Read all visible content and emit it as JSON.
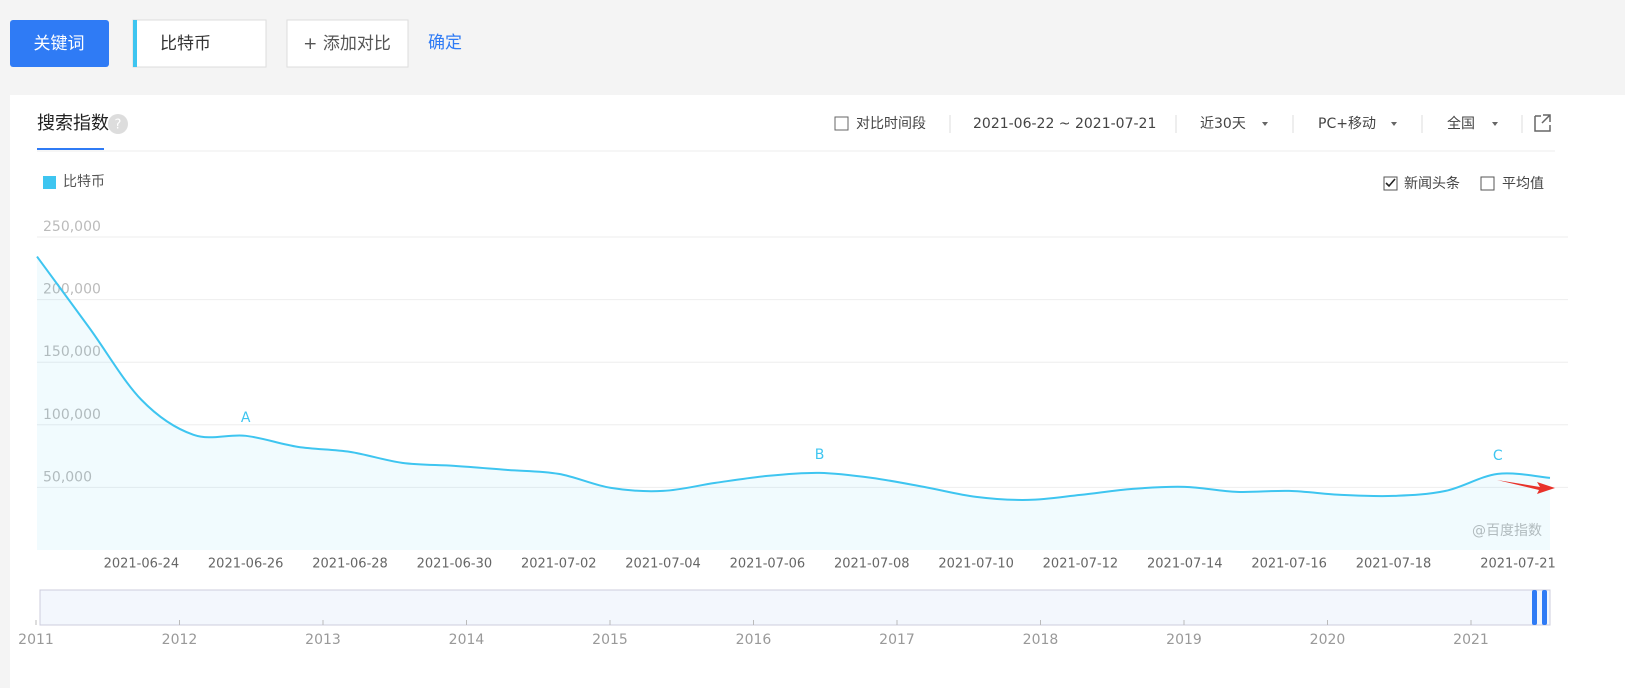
{
  "toolbar": {
    "keyword_button": "关键词",
    "keyword": "比特币",
    "add_compare": "+ 添加对比",
    "confirm": "确定"
  },
  "panel": {
    "tab": "搜索指数",
    "help": "?",
    "compare_period": "对比时间段",
    "date_range": "2021-06-22 ~ 2021-07-21",
    "period": "近30天",
    "device": "PC+移动",
    "region": "全国",
    "news_headlines": "新闻头条",
    "news_checked": true,
    "average": "平均值",
    "average_checked": false,
    "watermark": "@百度指数"
  },
  "chart_data": {
    "type": "line",
    "categories": [
      "2021-06-22",
      "2021-06-23",
      "2021-06-24",
      "2021-06-25",
      "2021-06-26",
      "2021-06-27",
      "2021-06-28",
      "2021-06-29",
      "2021-06-30",
      "2021-07-01",
      "2021-07-02",
      "2021-07-03",
      "2021-07-04",
      "2021-07-05",
      "2021-07-06",
      "2021-07-07",
      "2021-07-08",
      "2021-07-09",
      "2021-07-10",
      "2021-07-11",
      "2021-07-12",
      "2021-07-13",
      "2021-07-14",
      "2021-07-15",
      "2021-07-16",
      "2021-07-17",
      "2021-07-18",
      "2021-07-19",
      "2021-07-20",
      "2021-07-21"
    ],
    "xticks": [
      "2021-06-24",
      "2021-06-26",
      "2021-06-28",
      "2021-06-30",
      "2021-07-02",
      "2021-07-04",
      "2021-07-06",
      "2021-07-08",
      "2021-07-10",
      "2021-07-12",
      "2021-07-14",
      "2021-07-16",
      "2021-07-18",
      "2021-07-21"
    ],
    "series": [
      {
        "name": "比特币",
        "color": "#3ec5f0",
        "values": [
          234400,
          177600,
          120000,
          92000,
          91200,
          82400,
          78400,
          69600,
          67200,
          64000,
          60800,
          49600,
          47200,
          53600,
          59200,
          61600,
          57600,
          50400,
          42400,
          40000,
          44000,
          48800,
          50400,
          46400,
          47200,
          44000,
          43200,
          47200,
          60800,
          57600
        ]
      }
    ],
    "ylim": [
      0,
      250000
    ],
    "yticks": [
      {
        "value": 50000,
        "label": "50,000"
      },
      {
        "value": 100000,
        "label": "100,000"
      },
      {
        "value": 150000,
        "label": "150,000"
      },
      {
        "value": 200000,
        "label": "200,000"
      },
      {
        "value": 250000,
        "label": "250,000"
      }
    ],
    "grid": true,
    "annotations": [
      {
        "text": "A",
        "x": "2021-06-26"
      },
      {
        "text": "B",
        "x": "2021-07-07"
      },
      {
        "text": "C",
        "x": "2021-07-20"
      }
    ],
    "timeline_years": [
      "2011",
      "2012",
      "2013",
      "2014",
      "2015",
      "2016",
      "2017",
      "2018",
      "2019",
      "2020",
      "2021"
    ]
  }
}
